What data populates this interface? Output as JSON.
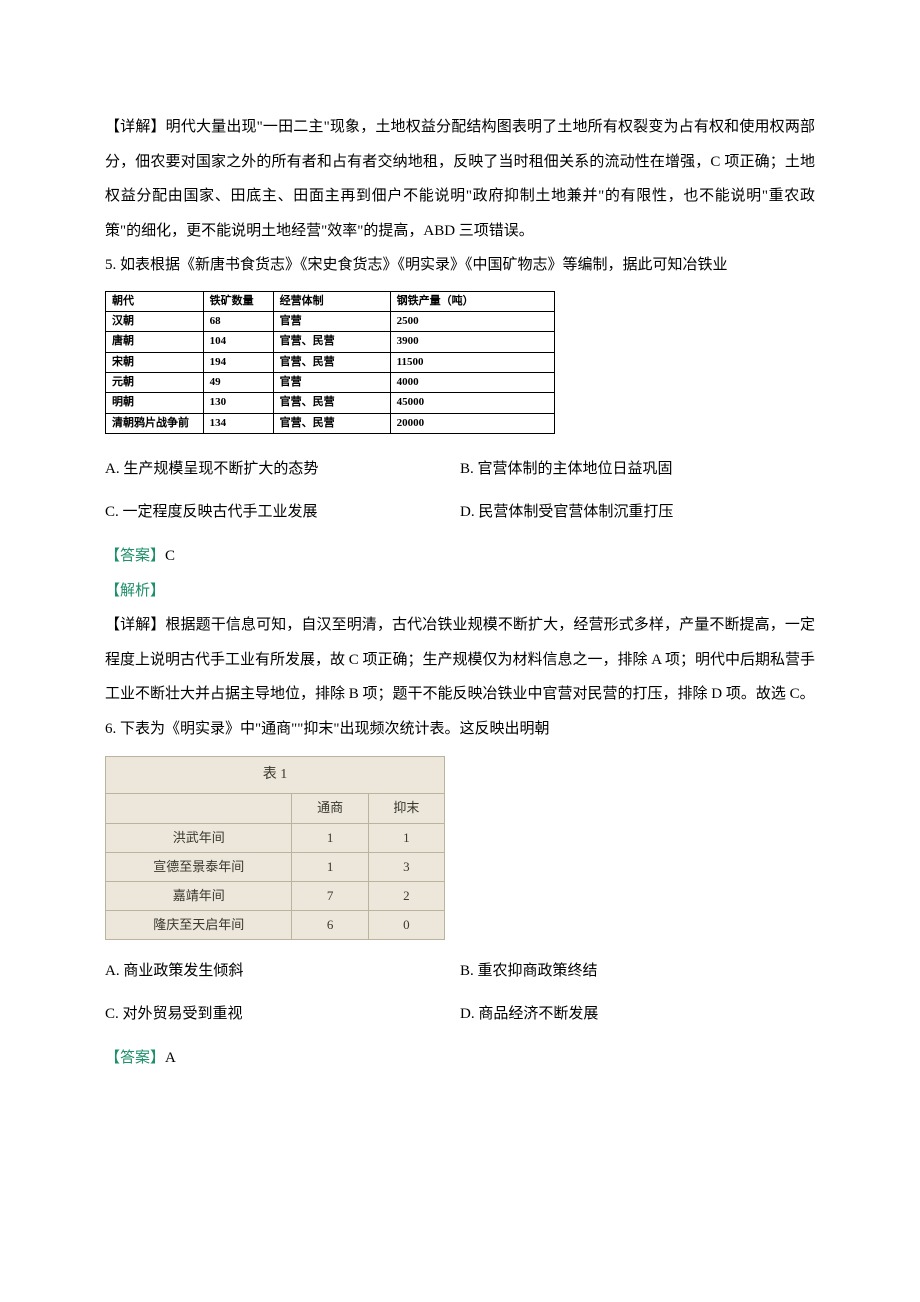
{
  "colors": {
    "answer_green": "#1d8f69",
    "body_text": "#000000",
    "table2_bg": "#ece7da",
    "table2_border": "#bab39d",
    "table2_text": "#3a372f"
  },
  "explanation4": "【详解】明代大量出现\"一田二主\"现象，土地权益分配结构图表明了土地所有权裂变为占有权和使用权两部分，佃农要对国家之外的所有者和占有者交纳地租，反映了当时租佃关系的流动性在增强，C 项正确；土地权益分配由国家、田底主、田面主再到佃户不能说明\"政府抑制土地兼并\"的有限性，也不能说明\"重农政策\"的细化，更不能说明土地经营\"效率\"的提高，ABD 三项错误。",
  "q5": {
    "stem": "5. 如表根据《新唐书食货志》《宋史食货志》《明实录》《中国矿物志》等编制，据此可知冶铁业",
    "table": {
      "headers": [
        "朝代",
        "铁矿数量",
        "经营体制",
        "钢铁产量（吨）"
      ],
      "rows": [
        [
          "汉朝",
          "68",
          "官营",
          "2500"
        ],
        [
          "唐朝",
          "104",
          "官营、民营",
          "3900"
        ],
        [
          "宋朝",
          "194",
          "官营、民营",
          "11500"
        ],
        [
          "元朝",
          "49",
          "官营",
          "4000"
        ],
        [
          "明朝",
          "130",
          "官营、民营",
          "45000"
        ],
        [
          "清朝鸦片战争前",
          "134",
          "官营、民营",
          "20000"
        ]
      ]
    },
    "options": {
      "A": "A. 生产规模呈现不断扩大的态势",
      "B": "B. 官营体制的主体地位日益巩固",
      "C": "C. 一定程度反映古代手工业发展",
      "D": "D. 民营体制受官营体制沉重打压"
    },
    "answer_label": "【答案】",
    "answer": "C",
    "analysis_label": "【解析】",
    "explanation": "【详解】根据题干信息可知，自汉至明清，古代冶铁业规模不断扩大，经营形式多样，产量不断提高，一定程度上说明古代手工业有所发展，故 C 项正确；生产规模仅为材料信息之一，排除 A 项；明代中后期私营手工业不断壮大并占据主导地位，排除 B 项；题干不能反映冶铁业中官营对民营的打压，排除 D 项。故选 C。"
  },
  "q6": {
    "stem": "6. 下表为《明实录》中\"通商\"\"抑末\"出现频次统计表。这反映出明朝",
    "table": {
      "caption": "表 1",
      "headers": [
        "",
        "通商",
        "抑末"
      ],
      "rows": [
        [
          "洪武年间",
          "1",
          "1"
        ],
        [
          "宣德至景泰年间",
          "1",
          "3"
        ],
        [
          "嘉靖年间",
          "7",
          "2"
        ],
        [
          "隆庆至天启年间",
          "6",
          "0"
        ]
      ]
    },
    "options": {
      "A": "A. 商业政策发生倾斜",
      "B": "B. 重农抑商政策终结",
      "C": "C. 对外贸易受到重视",
      "D": "D. 商品经济不断发展"
    },
    "answer_label": "【答案】",
    "answer": "A"
  }
}
